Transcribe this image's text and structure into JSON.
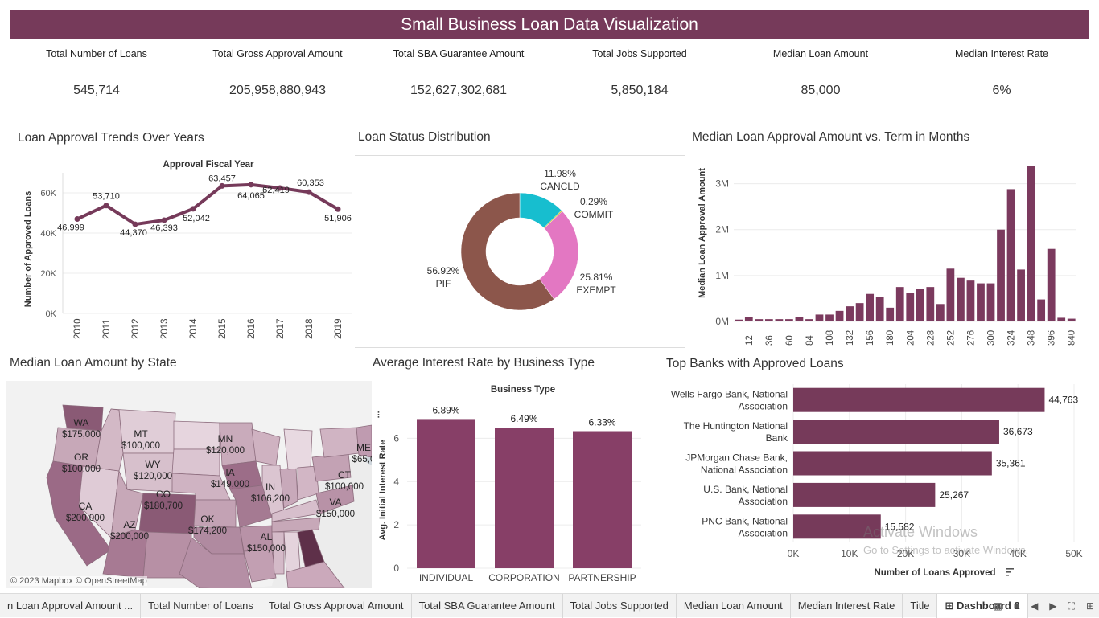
{
  "title": "Small Business Loan Data Visualization",
  "kpis": [
    {
      "label": "Total Number of Loans",
      "value": "545,714"
    },
    {
      "label": "Total Gross Approval Amount",
      "value": "205,958,880,943"
    },
    {
      "label": "Total SBA Guarantee Amount",
      "value": "152,627,302,681"
    },
    {
      "label": "Total Jobs Supported",
      "value": "5,850,184"
    },
    {
      "label": "Median Loan Amount",
      "value": "85,000"
    },
    {
      "label": "Median Interest Rate",
      "value": "6%"
    }
  ],
  "panels": {
    "trend_title": "Loan Approval Trends Over Years",
    "status_title": "Loan Status Distribution",
    "term_title": "Median Loan Approval Amount vs. Term in Months",
    "state_title": "Median Loan Amount by State",
    "rate_title": "Average Interest Rate by Business Type",
    "banks_title": "Top Banks with Approved Loans"
  },
  "colors": {
    "primary": "#763a5a",
    "bar": "#7b3a5e",
    "status": [
      "#17becf",
      "#bcbd22",
      "#e377c2",
      "#8c564b"
    ]
  },
  "chart_data": [
    {
      "type": "line",
      "title": "Approval Fiscal Year",
      "ylabel": "Number of Approved Loans",
      "x": [
        "2010",
        "2011",
        "2012",
        "2013",
        "2014",
        "2015",
        "2016",
        "2017",
        "2018",
        "2019"
      ],
      "values": [
        46999,
        53710,
        44370,
        46393,
        52042,
        63457,
        64065,
        62419,
        60353,
        51906
      ],
      "value_labels": [
        "46,999",
        "53,710",
        "44,370",
        "46,393",
        "52,042",
        "63,457",
        "64,065",
        "62,419",
        "60,353",
        "51,906"
      ],
      "yticks": [
        "0K",
        "20K",
        "40K",
        "60K"
      ],
      "ylim": [
        0,
        70000
      ]
    },
    {
      "type": "pie",
      "slices": [
        {
          "label": "CANCLD",
          "value": 11.98,
          "text": "11.98%"
        },
        {
          "label": "COMMIT",
          "value": 0.29,
          "text": "0.29%"
        },
        {
          "label": "EXEMPT",
          "value": 25.81,
          "text": "25.81%"
        },
        {
          "label": "PIF",
          "value": 56.92,
          "text": "56.92%"
        }
      ]
    },
    {
      "type": "bar",
      "ylabel": "Median Loan Approval Amount",
      "x": [
        1,
        12,
        24,
        36,
        48,
        60,
        72,
        84,
        96,
        108,
        120,
        132,
        144,
        156,
        168,
        180,
        192,
        204,
        216,
        228,
        240,
        252,
        264,
        276,
        288,
        300,
        312,
        324,
        336,
        348,
        360,
        396,
        420,
        840
      ],
      "values": [
        40000,
        100000,
        50000,
        50000,
        50000,
        50000,
        90000,
        50000,
        150000,
        150000,
        230000,
        330000,
        400000,
        600000,
        530000,
        300000,
        750000,
        620000,
        700000,
        750000,
        380000,
        1150000,
        950000,
        890000,
        830000,
        830000,
        2000000,
        2880000,
        1130000,
        3380000,
        480000,
        1580000,
        80000,
        60000
      ],
      "xticks": [
        "12",
        "36",
        "60",
        "84",
        "108",
        "132",
        "156",
        "180",
        "204",
        "228",
        "252",
        "276",
        "300",
        "324",
        "348",
        "396",
        "840"
      ],
      "yticks": [
        "0M",
        "1M",
        "2M",
        "3M"
      ],
      "ylim": [
        0,
        3500000
      ]
    },
    {
      "type": "bar",
      "title": "Business Type",
      "ylabel": "Avg. Initial Interest Rate",
      "categories": [
        "INDIVIDUAL",
        "CORPORATION",
        "PARTNERSHIP"
      ],
      "values": [
        6.89,
        6.49,
        6.33
      ],
      "value_labels": [
        "6.89%",
        "6.49%",
        "6.33%"
      ],
      "yticks": [
        "0",
        "2",
        "4",
        "6"
      ],
      "ylim": [
        0,
        7.5
      ]
    },
    {
      "type": "bar",
      "orientation": "horizontal",
      "xlabel": "Number of Loans Approved",
      "categories": [
        [
          "Wells Fargo Bank, National",
          "Association"
        ],
        [
          "The Huntington National",
          "Bank"
        ],
        [
          "JPMorgan Chase Bank,",
          "National Association"
        ],
        [
          "U.S. Bank, National",
          "Association"
        ],
        [
          "PNC Bank, National",
          "Association"
        ]
      ],
      "values": [
        44763,
        36673,
        35361,
        25267,
        15582
      ],
      "value_labels": [
        "44,763",
        "36,673",
        "35,361",
        "25,267",
        "15,582"
      ],
      "xticks": [
        "0K",
        "10K",
        "20K",
        "30K",
        "40K",
        "50K"
      ],
      "xlim": [
        0,
        50000
      ]
    }
  ],
  "map": {
    "labels": [
      {
        "state": "WA",
        "amount": "$175,000"
      },
      {
        "state": "OR",
        "amount": "$100,000"
      },
      {
        "state": "MT",
        "amount": "$100,000"
      },
      {
        "state": "WY",
        "amount": "$120,000"
      },
      {
        "state": "MN",
        "amount": "$120,000"
      },
      {
        "state": "IA",
        "amount": "$149,000"
      },
      {
        "state": "CO",
        "amount": "$180,700"
      },
      {
        "state": "CA",
        "amount": "$200,000"
      },
      {
        "state": "AZ",
        "amount": "$200,000"
      },
      {
        "state": "OK",
        "amount": "$174,200"
      },
      {
        "state": "IN",
        "amount": "$106,200"
      },
      {
        "state": "VA",
        "amount": "$150,000"
      },
      {
        "state": "CT",
        "amount": "$100,000"
      },
      {
        "state": "ME",
        "amount": "$65,0"
      },
      {
        "state": "AL",
        "amount": "$150,000"
      }
    ],
    "attribution": "© 2023 Mapbox © OpenStreetMap"
  },
  "tabs": [
    "n Loan Approval Amount ...",
    "Total Number of Loans",
    "Total Gross Approval Amount",
    "Total SBA Guarantee Amount",
    "Total Jobs Supported",
    "Median Loan Amount",
    "Median Interest Rate",
    "Title",
    "Dashboard 2"
  ],
  "watermark": {
    "line1": "Activate Windows",
    "line2": "Go to Settings to activate Windows."
  }
}
